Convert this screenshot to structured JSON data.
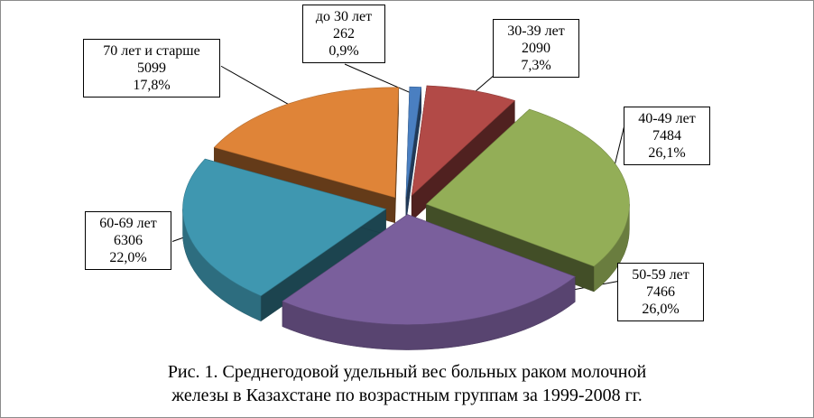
{
  "chart_data": {
    "type": "pie",
    "style": "3d-exploded",
    "categories": [
      "до 30 лет",
      "30-39 лет",
      "40-49 лет",
      "50-59 лет",
      "60-69 лет",
      "70 лет и старше"
    ],
    "values": [
      262,
      2090,
      7484,
      7466,
      6306,
      5099
    ],
    "percent_labels": [
      "0,9%",
      "7,3%",
      "26,1%",
      "26,0%",
      "22,0%",
      "17,8%"
    ],
    "value_labels": [
      "262",
      "2090",
      "7484",
      "7466",
      "6306",
      "5099"
    ],
    "colors": [
      "#4a7fc1",
      "#b24a47",
      "#93ae57",
      "#7a5f9c",
      "#3f97b0",
      "#df8438"
    ],
    "legend": "none"
  },
  "caption": {
    "line1": "Рис. 1. Среднегодовой удельный вес больных раком молочной",
    "line2": "железы в Казахстане по возрастным группам за 1999-2008 гг."
  }
}
